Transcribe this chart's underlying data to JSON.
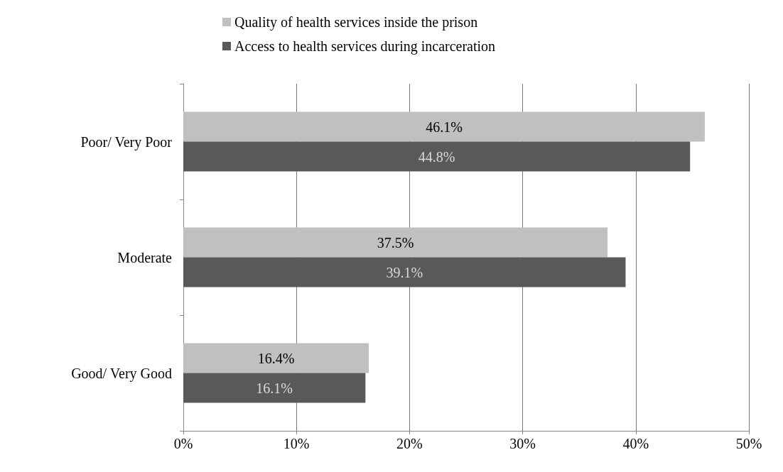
{
  "chart_data": {
    "type": "bar",
    "orientation": "horizontal",
    "categories": [
      "Poor/ Very Poor",
      "Moderate",
      "Good/ Very Good"
    ],
    "series": [
      {
        "name": "Quality of health services inside the prison",
        "color": "#c0c0c0",
        "values": [
          46.1,
          37.5,
          16.4
        ],
        "value_labels": [
          "46.1%",
          "37.5%",
          "16.4%"
        ]
      },
      {
        "name": "Access to health services during incarceration",
        "color": "#595959",
        "values": [
          44.8,
          39.1,
          16.1
        ],
        "value_labels": [
          "44.8%",
          "39.1%",
          "16.1%"
        ]
      }
    ],
    "xlim": [
      0,
      50
    ],
    "xticks": [
      {
        "value": 0,
        "label": "0%"
      },
      {
        "value": 10,
        "label": "10%"
      },
      {
        "value": 20,
        "label": "20%"
      },
      {
        "value": 30,
        "label": "30%"
      },
      {
        "value": 40,
        "label": "40%"
      },
      {
        "value": 50,
        "label": "50%"
      }
    ],
    "grid": "x",
    "legend": "top"
  }
}
